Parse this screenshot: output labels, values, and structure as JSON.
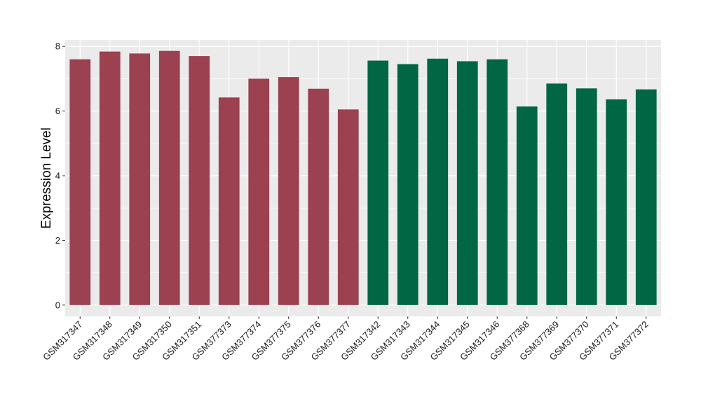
{
  "chart_data": {
    "type": "bar",
    "ylabel": "Expression Level",
    "xlabel": "",
    "ylim": [
      -0.35,
      8.2
    ],
    "yticks": [
      0,
      2,
      4,
      6,
      8
    ],
    "grid": true,
    "panel_background": "#EBEBEB",
    "grid_color": "#FFFFFF",
    "categories": [
      "GSM317347",
      "GSM317348",
      "GSM317349",
      "GSM317350",
      "GSM317351",
      "GSM377373",
      "GSM377374",
      "GSM377375",
      "GSM377376",
      "GSM377377",
      "GSM317342",
      "GSM317343",
      "GSM317344",
      "GSM317345",
      "GSM317346",
      "GSM377368",
      "GSM377369",
      "GSM377370",
      "GSM377371",
      "GSM377372"
    ],
    "values": [
      7.6,
      7.84,
      7.78,
      7.86,
      7.7,
      6.42,
      7.0,
      7.05,
      6.69,
      6.05,
      7.56,
      7.45,
      7.62,
      7.54,
      7.6,
      6.14,
      6.85,
      6.7,
      6.36,
      6.67
    ],
    "bar_colors": [
      "#9B4150",
      "#9B4150",
      "#9B4150",
      "#9B4150",
      "#9B4150",
      "#9B4150",
      "#9B4150",
      "#9B4150",
      "#9B4150",
      "#9B4150",
      "#006644",
      "#006644",
      "#006644",
      "#006644",
      "#006644",
      "#006644",
      "#006644",
      "#006644",
      "#006644",
      "#006644"
    ]
  }
}
